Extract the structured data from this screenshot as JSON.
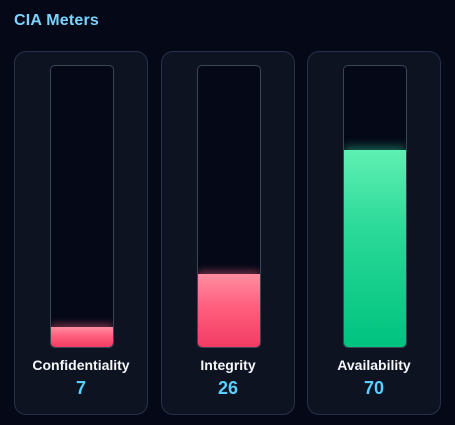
{
  "panel": {
    "title": "CIA Meters"
  },
  "meters": [
    {
      "label": "Confidentiality",
      "value": "7",
      "level_percent": 7,
      "fill_color": "#ff5f7d"
    },
    {
      "label": "Integrity",
      "value": "26",
      "level_percent": 26,
      "fill_color": "#ff5f7d"
    },
    {
      "label": "Availability",
      "value": "70",
      "level_percent": 70,
      "fill_color": "#2bd998"
    }
  ],
  "colors": {
    "background": "#050816",
    "card": "#0e1322",
    "title": "#7dd3fc",
    "value": "#59cfff",
    "low_fill": "#ff5f7d",
    "high_fill": "#2bd998"
  }
}
